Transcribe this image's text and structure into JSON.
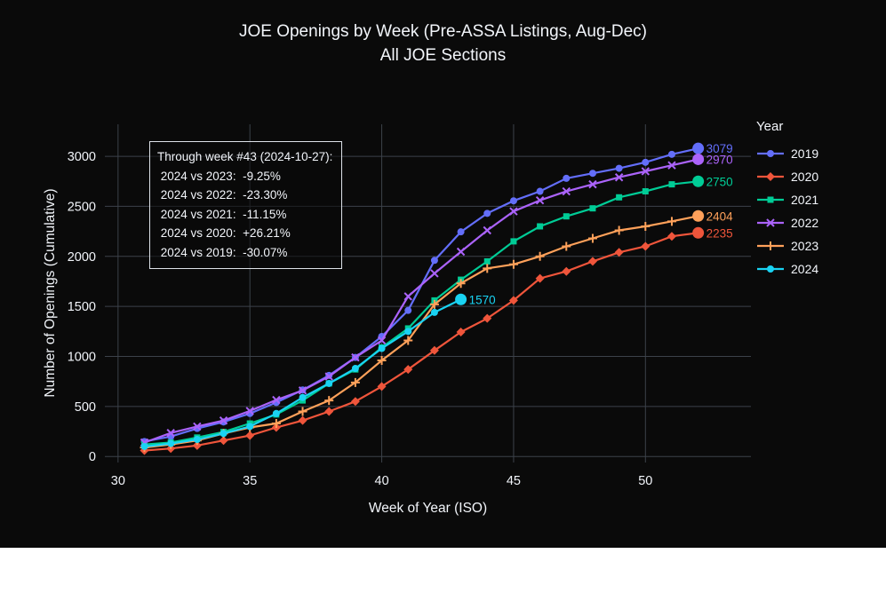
{
  "chart_data": {
    "type": "line",
    "title": "JOE Openings by Week (Pre-ASSA Listings, Aug-Dec)",
    "subtitle": "All JOE Sections",
    "xlabel": "Week of Year (ISO)",
    "ylabel": "Number of Openings (Cumulative)",
    "x_ticks": [
      30,
      35,
      40,
      45,
      50
    ],
    "y_ticks": [
      0,
      500,
      1000,
      1500,
      2000,
      2500,
      3000
    ],
    "xlim": [
      29.5,
      54
    ],
    "ylim": [
      -60,
      3320
    ],
    "grid": true,
    "background": "#0a0a0a",
    "grid_color": "#3c424a",
    "text_color": "#f2f5fa",
    "legend_title": "Year",
    "legend_position": "right",
    "series": [
      {
        "name": "2019",
        "color": "#636efa",
        "marker": "circle",
        "end_label": "3079",
        "x": [
          31,
          32,
          33,
          34,
          35,
          36,
          37,
          38,
          39,
          40,
          41,
          42,
          43,
          44,
          45,
          46,
          47,
          48,
          49,
          50,
          51,
          52
        ],
        "values": [
          150,
          200,
          280,
          345,
          430,
          540,
          665,
          810,
          990,
          1200,
          1460,
          1960,
          2245,
          2430,
          2555,
          2650,
          2780,
          2830,
          2880,
          2940,
          3020,
          3079
        ]
      },
      {
        "name": "2020",
        "color": "#ef553b",
        "marker": "diamond",
        "end_label": "2235",
        "x": [
          31,
          32,
          33,
          34,
          35,
          36,
          37,
          38,
          39,
          40,
          41,
          42,
          43,
          44,
          45,
          46,
          47,
          48,
          49,
          50,
          51,
          52
        ],
        "values": [
          60,
          80,
          110,
          160,
          210,
          290,
          360,
          450,
          550,
          700,
          870,
          1060,
          1244,
          1380,
          1560,
          1780,
          1850,
          1950,
          2040,
          2100,
          2200,
          2235
        ]
      },
      {
        "name": "2021",
        "color": "#00cc96",
        "marker": "square",
        "end_label": "2750",
        "x": [
          31,
          32,
          33,
          34,
          35,
          36,
          37,
          38,
          39,
          40,
          41,
          42,
          43,
          44,
          45,
          46,
          47,
          48,
          49,
          50,
          51,
          52
        ],
        "values": [
          120,
          140,
          190,
          245,
          330,
          420,
          560,
          730,
          870,
          1090,
          1280,
          1560,
          1767,
          1950,
          2150,
          2300,
          2400,
          2480,
          2590,
          2650,
          2720,
          2750
        ]
      },
      {
        "name": "2022",
        "color": "#ab63fa",
        "marker": "x",
        "end_label": "2970",
        "x": [
          31,
          32,
          33,
          34,
          35,
          36,
          37,
          38,
          39,
          40,
          41,
          42,
          43,
          44,
          45,
          46,
          47,
          48,
          49,
          50,
          51,
          52
        ],
        "values": [
          140,
          235,
          300,
          360,
          455,
          565,
          660,
          800,
          990,
          1160,
          1600,
          1830,
          2047,
          2260,
          2450,
          2560,
          2650,
          2720,
          2790,
          2850,
          2910,
          2970
        ]
      },
      {
        "name": "2023",
        "color": "#ffa15a",
        "marker": "plus",
        "end_label": "2404",
        "x": [
          31,
          32,
          33,
          34,
          35,
          36,
          37,
          38,
          39,
          40,
          41,
          42,
          43,
          44,
          45,
          46,
          47,
          48,
          49,
          50,
          51,
          52
        ],
        "values": [
          90,
          120,
          160,
          230,
          290,
          330,
          450,
          560,
          740,
          960,
          1160,
          1520,
          1730,
          1880,
          1920,
          2000,
          2100,
          2180,
          2260,
          2300,
          2350,
          2404
        ]
      },
      {
        "name": "2024",
        "color": "#19d3f3",
        "marker": "circle",
        "end_label": "1570",
        "x": [
          31,
          32,
          33,
          34,
          35,
          36,
          37,
          38,
          39,
          40,
          41,
          42,
          43
        ],
        "values": [
          100,
          130,
          170,
          230,
          300,
          430,
          590,
          730,
          880,
          1080,
          1250,
          1440,
          1570
        ]
      }
    ],
    "annotation": {
      "lines": [
        "Through week #43 (2024-10-27):",
        " 2024 vs 2023:  -9.25%",
        " 2024 vs 2022:  -23.30%",
        " 2024 vs 2021:  -11.15%",
        " 2024 vs 2020:  +26.21%",
        " 2024 vs 2019:  -30.07%"
      ]
    }
  }
}
